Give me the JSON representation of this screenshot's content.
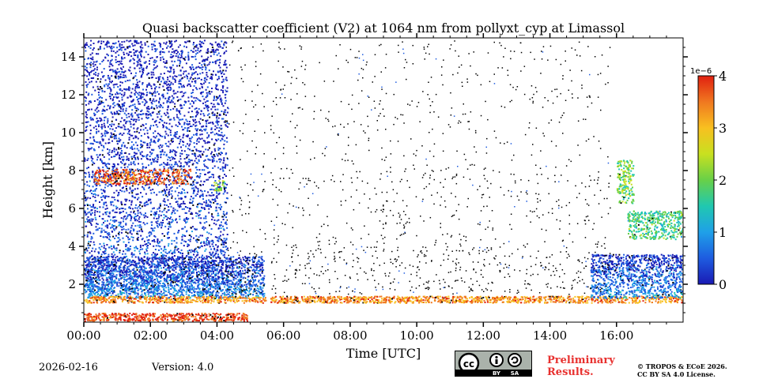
{
  "chart_data": {
    "type": "heatmap",
    "title": "Quasi backscatter coefficient (V2) at 1064 nm from pollyxt_cyp at Limassol",
    "xlabel": "Time [UTC]",
    "ylabel": "Height [km]",
    "xlim": [
      0,
      18
    ],
    "ylim": [
      0,
      15
    ],
    "x_ticks": [
      0,
      2,
      4,
      6,
      8,
      10,
      12,
      14,
      16
    ],
    "x_tick_labels": [
      "00:00",
      "02:00",
      "04:00",
      "06:00",
      "08:00",
      "10:00",
      "12:00",
      "14:00",
      "16:00"
    ],
    "y_ticks": [
      2,
      4,
      6,
      8,
      10,
      12,
      14
    ],
    "y_tick_labels": [
      "2",
      "4",
      "6",
      "8",
      "10",
      "12",
      "14"
    ],
    "colorbar": {
      "ticks": [
        0,
        1,
        2,
        3,
        4
      ],
      "tick_labels": [
        "0",
        "1",
        "2",
        "3",
        "4"
      ],
      "scale_label": "1e−6",
      "range": [
        0,
        4
      ],
      "colormap": [
        "#1a1ab4",
        "#1e5ce0",
        "#1fa0e8",
        "#20c8b0",
        "#68d048",
        "#c8e020",
        "#f8c020",
        "#f07820",
        "#e02010"
      ]
    },
    "features": [
      {
        "kind": "noise",
        "t0": 0.0,
        "t1": 4.3,
        "h0": 1.5,
        "h1": 14.9,
        "value": 0.5
      },
      {
        "kind": "boundary_layer",
        "t0": 0.0,
        "t1": 5.4,
        "h0": 1.3,
        "h1": 3.5,
        "value": 0.8
      },
      {
        "kind": "cloud",
        "t0": 0.3,
        "t1": 3.2,
        "h0": 7.3,
        "h1": 8.1,
        "value": 3.5
      },
      {
        "kind": "cloud",
        "t0": 3.9,
        "t1": 4.2,
        "h0": 6.9,
        "h1": 7.5,
        "value": 2.2
      },
      {
        "kind": "aerosol_top",
        "t0": 0.0,
        "t1": 18.0,
        "h0": 1.05,
        "h1": 1.4,
        "value": 3.2
      },
      {
        "kind": "surface_layer",
        "t0": 0.0,
        "t1": 4.9,
        "h0": 0.1,
        "h1": 0.5,
        "value": 3.6
      },
      {
        "kind": "evening_layer",
        "t0": 15.2,
        "t1": 18.0,
        "h0": 1.3,
        "h1": 3.6,
        "value": 0.8
      },
      {
        "kind": "cloud",
        "t0": 16.0,
        "t1": 16.5,
        "h0": 6.3,
        "h1": 8.6,
        "value": 2.0
      },
      {
        "kind": "elevated_layer",
        "t0": 16.3,
        "t1": 18.0,
        "h0": 4.4,
        "h1": 5.9,
        "value": 1.8
      }
    ],
    "gaps": [
      [
        5.45,
        5.6
      ]
    ]
  },
  "footer": {
    "date": "2026-02-16",
    "version": "Version: 4.0",
    "license_badge": {
      "icons": [
        "cc-icon",
        "by-icon",
        "sa-icon"
      ],
      "labels": [
        "BY",
        "SA"
      ]
    },
    "preliminary_line1": "Preliminary",
    "preliminary_line2": "Results.",
    "copyright_line1": "© TROPOS & ECoE 2026.",
    "copyright_line2": "CC BY SA 4.0 License."
  }
}
